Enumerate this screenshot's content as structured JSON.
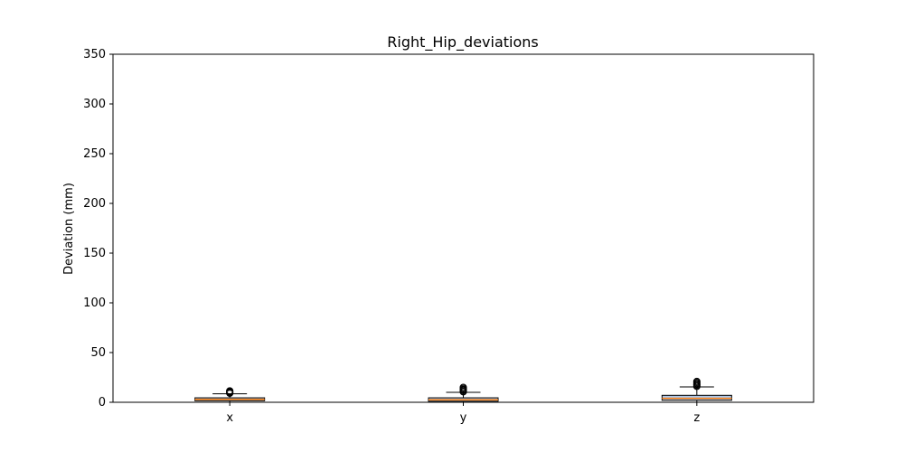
{
  "chart_data": {
    "type": "box",
    "title": "Right_Hip_deviations",
    "xlabel": "",
    "ylabel": "Deviation (mm)",
    "ylim": [
      0,
      350
    ],
    "yticks": [
      0,
      50,
      100,
      150,
      200,
      250,
      300,
      350
    ],
    "categories": [
      "x",
      "y",
      "z"
    ],
    "boxes": [
      {
        "category": "x",
        "q1": 1.5,
        "median": 3.0,
        "q3": 4.5,
        "whisker_low": 0,
        "whisker_high": 8.5,
        "outliers": [
          9.0,
          9.5,
          10.0,
          10.5,
          11.0,
          11.5
        ]
      },
      {
        "category": "y",
        "q1": 1.0,
        "median": 2.5,
        "q3": 4.5,
        "whisker_low": 0,
        "whisker_high": 10.0,
        "outliers": [
          10.5,
          11.0,
          12.0,
          12.5,
          13.0,
          14.0,
          15.0
        ]
      },
      {
        "category": "z",
        "q1": 2.0,
        "median": 4.0,
        "q3": 7.0,
        "whisker_low": 0,
        "whisker_high": 15.5,
        "outliers": [
          16.0,
          17.0,
          18.0,
          19.0,
          20.0,
          21.0
        ]
      }
    ],
    "colors": {
      "box_fill": "#aec7e8",
      "box_edge": "#000000",
      "median": "#ff7f0e",
      "flier": "#000000"
    },
    "grid": false,
    "legend": false
  }
}
